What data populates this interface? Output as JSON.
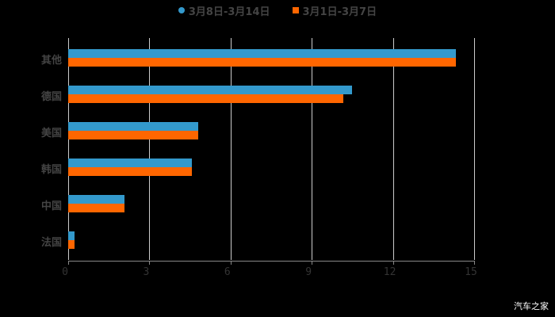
{
  "chart_data": {
    "type": "bar",
    "orientation": "horizontal",
    "title": "",
    "xlabel": "",
    "ylabel": "",
    "categories": [
      "其他",
      "德国",
      "美国",
      "韩国",
      "中国",
      "法国"
    ],
    "series": [
      {
        "name": "3月8日-3月14日",
        "color": "#3399cc",
        "values": [
          14.33,
          10.5,
          4.8,
          4.57,
          2.08,
          0.23
        ]
      },
      {
        "name": "3月1日-3月7日",
        "color": "#ff6600",
        "values": [
          14.33,
          10.17,
          4.8,
          4.57,
          2.08,
          0.23
        ]
      }
    ],
    "xlim": [
      0,
      15
    ],
    "xticks": [
      "0",
      "3",
      "6",
      "9",
      "12",
      "15"
    ],
    "grid": true,
    "legend_position": "top"
  },
  "legend": [
    {
      "label": "3月8日-3月14日",
      "color": "#3399cc"
    },
    {
      "label": "3月1日-3月7日",
      "color": "#ff6600"
    }
  ],
  "watermark": "汽车之家"
}
